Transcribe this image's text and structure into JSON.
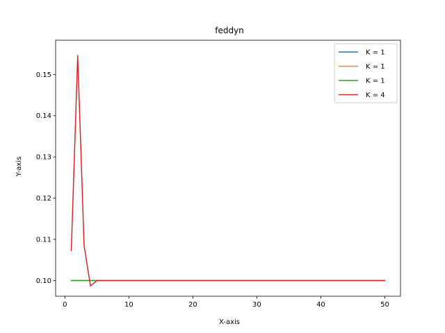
{
  "chart_data": {
    "type": "line",
    "title": "feddyn",
    "xlabel": "X-axis",
    "ylabel": "Y-axis",
    "xlim": [
      -1.45,
      52.45
    ],
    "ylim": [
      0.0962,
      0.1583
    ],
    "xticks": [
      0,
      10,
      20,
      30,
      40,
      50
    ],
    "yticks": [
      0.1,
      0.11,
      0.12,
      0.13,
      0.14,
      0.15
    ],
    "ytick_labels": [
      "0.10",
      "0.11",
      "0.12",
      "0.13",
      "0.14",
      "0.15"
    ],
    "grid": false,
    "legend_placement": "top-right",
    "x": [
      1,
      2,
      3,
      4,
      5,
      6,
      7,
      8,
      9,
      10,
      11,
      12,
      13,
      14,
      15,
      16,
      17,
      18,
      19,
      20,
      21,
      22,
      23,
      24,
      25,
      26,
      27,
      28,
      29,
      30,
      31,
      32,
      33,
      34,
      35,
      36,
      37,
      38,
      39,
      40,
      41,
      42,
      43,
      44,
      45,
      46,
      47,
      48,
      49,
      50
    ],
    "series": [
      {
        "name": "K = 1",
        "color": "#1f77b4",
        "values": [
          0.1,
          0.1,
          0.1,
          0.1,
          0.1,
          0.1,
          0.1,
          0.1,
          0.1,
          0.1,
          0.1,
          0.1,
          0.1,
          0.1,
          0.1,
          0.1,
          0.1,
          0.1,
          0.1,
          0.1,
          0.1,
          0.1,
          0.1,
          0.1,
          0.1,
          0.1,
          0.1,
          0.1,
          0.1,
          0.1,
          0.1,
          0.1,
          0.1,
          0.1,
          0.1,
          0.1,
          0.1,
          0.1,
          0.1,
          0.1,
          0.1,
          0.1,
          0.1,
          0.1,
          0.1,
          0.1,
          0.1,
          0.1,
          0.1,
          0.1
        ]
      },
      {
        "name": "K = 1",
        "color": "#ff7f0e",
        "values": [
          0.1,
          0.1,
          0.1,
          0.1,
          0.1,
          0.1,
          0.1,
          0.1,
          0.1,
          0.1,
          0.1,
          0.1,
          0.1,
          0.1,
          0.1,
          0.1,
          0.1,
          0.1,
          0.1,
          0.1,
          0.1,
          0.1,
          0.1,
          0.1,
          0.1,
          0.1,
          0.1,
          0.1,
          0.1,
          0.1,
          0.1,
          0.1,
          0.1,
          0.1,
          0.1,
          0.1,
          0.1,
          0.1,
          0.1,
          0.1,
          0.1,
          0.1,
          0.1,
          0.1,
          0.1,
          0.1,
          0.1,
          0.1,
          0.1,
          0.1
        ]
      },
      {
        "name": "K = 1",
        "color": "#2ca02c",
        "values": [
          0.1,
          0.1,
          0.1,
          0.1,
          0.1,
          0.1,
          0.1,
          0.1,
          0.1,
          0.1,
          0.1,
          0.1,
          0.1,
          0.1,
          0.1,
          0.1,
          0.1,
          0.1,
          0.1,
          0.1,
          0.1,
          0.1,
          0.1,
          0.1,
          0.1,
          0.1,
          0.1,
          0.1,
          0.1,
          0.1,
          0.1,
          0.1,
          0.1,
          0.1,
          0.1,
          0.1,
          0.1,
          0.1,
          0.1,
          0.1,
          0.1,
          0.1,
          0.1,
          0.1,
          0.1,
          0.1,
          0.1,
          0.1,
          0.1,
          0.1
        ]
      },
      {
        "name": "K = 4",
        "color": "#d62728",
        "values": [
          0.1073,
          0.1546,
          0.1085,
          0.0987,
          0.1,
          0.1,
          0.1,
          0.1,
          0.1,
          0.1,
          0.1,
          0.1,
          0.1,
          0.1,
          0.1,
          0.1,
          0.1,
          0.1,
          0.1,
          0.1,
          0.1,
          0.1,
          0.1,
          0.1,
          0.1,
          0.1,
          0.1,
          0.1,
          0.1,
          0.1,
          0.1,
          0.1,
          0.1,
          0.1,
          0.1,
          0.1,
          0.1,
          0.1,
          0.1,
          0.1,
          0.1,
          0.1,
          0.1,
          0.1,
          0.1,
          0.1,
          0.1,
          0.1,
          0.1,
          0.1
        ]
      }
    ]
  }
}
